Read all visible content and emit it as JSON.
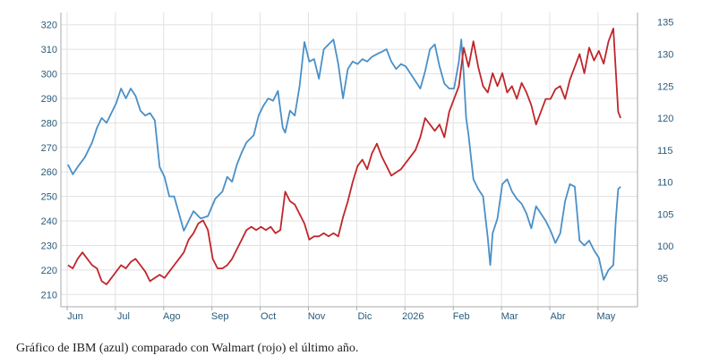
{
  "caption": "Gráfico de IBM (azul) comparado con Walmart (rojo) el último año.",
  "chart_data": {
    "type": "line",
    "title": "",
    "grid": true,
    "x_labels": [
      "Jun",
      "Jul",
      "Ago",
      "Sep",
      "Oct",
      "Nov",
      "Dic",
      "2026",
      "Feb",
      "Mar",
      "Abr",
      "May"
    ],
    "x_range": [
      0,
      11.6
    ],
    "y_left": {
      "ticks": [
        210,
        220,
        230,
        240,
        250,
        260,
        270,
        280,
        290,
        300,
        310,
        320
      ],
      "range": [
        205,
        325
      ]
    },
    "y_right": {
      "ticks": [
        95,
        100,
        105,
        110,
        115,
        120,
        125,
        130,
        135
      ],
      "range": [
        90.5,
        136.5
      ]
    },
    "colors": {
      "blue": "#4a90c8",
      "red": "#c0262a",
      "grid": "#e1e1e1",
      "axis": "#aaaaaa"
    },
    "series": [
      {
        "color": "blue",
        "axis": "left",
        "points": [
          [
            -0.15,
            263
          ],
          [
            -0.05,
            259
          ],
          [
            0.05,
            262
          ],
          [
            0.2,
            266
          ],
          [
            0.35,
            272
          ],
          [
            0.45,
            278
          ],
          [
            0.55,
            282
          ],
          [
            0.65,
            280
          ],
          [
            0.75,
            284
          ],
          [
            0.85,
            288
          ],
          [
            0.95,
            294
          ],
          [
            1.05,
            290
          ],
          [
            1.15,
            294
          ],
          [
            1.25,
            291
          ],
          [
            1.35,
            285
          ],
          [
            1.45,
            283
          ],
          [
            1.55,
            284
          ],
          [
            1.65,
            281
          ],
          [
            1.75,
            262
          ],
          [
            1.85,
            258
          ],
          [
            1.95,
            250
          ],
          [
            2.05,
            250
          ],
          [
            2.15,
            243
          ],
          [
            2.25,
            236
          ],
          [
            2.35,
            240
          ],
          [
            2.45,
            244
          ],
          [
            2.6,
            241
          ],
          [
            2.75,
            242
          ],
          [
            2.9,
            249
          ],
          [
            3.05,
            252
          ],
          [
            3.15,
            258
          ],
          [
            3.25,
            256
          ],
          [
            3.35,
            263
          ],
          [
            3.45,
            268
          ],
          [
            3.55,
            272
          ],
          [
            3.7,
            275
          ],
          [
            3.8,
            283
          ],
          [
            3.9,
            287
          ],
          [
            4.0,
            290
          ],
          [
            4.1,
            289
          ],
          [
            4.2,
            293
          ],
          [
            4.3,
            278
          ],
          [
            4.35,
            276
          ],
          [
            4.45,
            285
          ],
          [
            4.55,
            283
          ],
          [
            4.65,
            295
          ],
          [
            4.75,
            313
          ],
          [
            4.85,
            305
          ],
          [
            4.95,
            306
          ],
          [
            5.05,
            298
          ],
          [
            5.15,
            310
          ],
          [
            5.25,
            312
          ],
          [
            5.35,
            314
          ],
          [
            5.45,
            304
          ],
          [
            5.55,
            290
          ],
          [
            5.65,
            302
          ],
          [
            5.75,
            305
          ],
          [
            5.85,
            304
          ],
          [
            5.95,
            306
          ],
          [
            6.05,
            305
          ],
          [
            6.15,
            307
          ],
          [
            6.25,
            308
          ],
          [
            6.35,
            309
          ],
          [
            6.45,
            310
          ],
          [
            6.55,
            305
          ],
          [
            6.65,
            302
          ],
          [
            6.75,
            304
          ],
          [
            6.85,
            303
          ],
          [
            6.95,
            300
          ],
          [
            7.05,
            297
          ],
          [
            7.15,
            294
          ],
          [
            7.25,
            301
          ],
          [
            7.35,
            310
          ],
          [
            7.45,
            312
          ],
          [
            7.55,
            303
          ],
          [
            7.65,
            296
          ],
          [
            7.75,
            294
          ],
          [
            7.85,
            294
          ],
          [
            7.95,
            305
          ],
          [
            8.0,
            314
          ],
          [
            8.05,
            300
          ],
          [
            8.1,
            282
          ],
          [
            8.15,
            275
          ],
          [
            8.25,
            257
          ],
          [
            8.35,
            253
          ],
          [
            8.45,
            250
          ],
          [
            8.55,
            233
          ],
          [
            8.6,
            222
          ],
          [
            8.65,
            235
          ],
          [
            8.75,
            241
          ],
          [
            8.85,
            255
          ],
          [
            8.95,
            257
          ],
          [
            9.05,
            252
          ],
          [
            9.15,
            249
          ],
          [
            9.25,
            247
          ],
          [
            9.35,
            243
          ],
          [
            9.45,
            237
          ],
          [
            9.55,
            246
          ],
          [
            9.65,
            243
          ],
          [
            9.75,
            240
          ],
          [
            9.85,
            236
          ],
          [
            9.95,
            231
          ],
          [
            10.05,
            235
          ],
          [
            10.15,
            248
          ],
          [
            10.25,
            255
          ],
          [
            10.35,
            254
          ],
          [
            10.45,
            232
          ],
          [
            10.55,
            230
          ],
          [
            10.65,
            232
          ],
          [
            10.75,
            228
          ],
          [
            10.85,
            225
          ],
          [
            10.95,
            216
          ],
          [
            11.05,
            220
          ],
          [
            11.15,
            222
          ],
          [
            11.2,
            240
          ],
          [
            11.25,
            253
          ],
          [
            11.3,
            254
          ]
        ]
      },
      {
        "color": "red",
        "axis": "right",
        "points": [
          [
            -0.15,
            97.0
          ],
          [
            -0.05,
            96.5
          ],
          [
            0.05,
            98.0
          ],
          [
            0.15,
            99.0
          ],
          [
            0.25,
            98.0
          ],
          [
            0.35,
            97.0
          ],
          [
            0.45,
            96.5
          ],
          [
            0.55,
            94.5
          ],
          [
            0.65,
            94.0
          ],
          [
            0.75,
            95.0
          ],
          [
            0.85,
            96.0
          ],
          [
            0.95,
            97.0
          ],
          [
            1.05,
            96.5
          ],
          [
            1.15,
            97.5
          ],
          [
            1.25,
            98.0
          ],
          [
            1.35,
            97.0
          ],
          [
            1.45,
            96.0
          ],
          [
            1.55,
            94.5
          ],
          [
            1.65,
            95.0
          ],
          [
            1.75,
            95.5
          ],
          [
            1.85,
            95.0
          ],
          [
            1.95,
            96.0
          ],
          [
            2.05,
            97.0
          ],
          [
            2.15,
            98.0
          ],
          [
            2.25,
            99.0
          ],
          [
            2.35,
            101.0
          ],
          [
            2.45,
            102.0
          ],
          [
            2.55,
            103.5
          ],
          [
            2.65,
            104.0
          ],
          [
            2.75,
            102.5
          ],
          [
            2.85,
            98.0
          ],
          [
            2.95,
            96.5
          ],
          [
            3.05,
            96.5
          ],
          [
            3.15,
            97.0
          ],
          [
            3.25,
            98.0
          ],
          [
            3.35,
            99.5
          ],
          [
            3.45,
            101.0
          ],
          [
            3.55,
            102.5
          ],
          [
            3.65,
            103.0
          ],
          [
            3.75,
            102.5
          ],
          [
            3.85,
            103.0
          ],
          [
            3.95,
            102.5
          ],
          [
            4.05,
            103.0
          ],
          [
            4.15,
            102.0
          ],
          [
            4.25,
            102.5
          ],
          [
            4.35,
            108.5
          ],
          [
            4.45,
            107.0
          ],
          [
            4.55,
            106.5
          ],
          [
            4.65,
            105.0
          ],
          [
            4.75,
            103.5
          ],
          [
            4.85,
            101.0
          ],
          [
            4.95,
            101.5
          ],
          [
            5.05,
            101.5
          ],
          [
            5.15,
            102.0
          ],
          [
            5.25,
            101.5
          ],
          [
            5.35,
            102.0
          ],
          [
            5.45,
            101.5
          ],
          [
            5.55,
            104.5
          ],
          [
            5.65,
            107.0
          ],
          [
            5.75,
            110.0
          ],
          [
            5.85,
            112.5
          ],
          [
            5.95,
            113.5
          ],
          [
            6.05,
            112.0
          ],
          [
            6.15,
            114.5
          ],
          [
            6.25,
            116.0
          ],
          [
            6.35,
            114.0
          ],
          [
            6.45,
            112.5
          ],
          [
            6.55,
            111.0
          ],
          [
            6.65,
            111.5
          ],
          [
            6.75,
            112.0
          ],
          [
            6.85,
            113.0
          ],
          [
            6.95,
            114.0
          ],
          [
            7.05,
            115.0
          ],
          [
            7.15,
            117.0
          ],
          [
            7.25,
            120.0
          ],
          [
            7.35,
            119.0
          ],
          [
            7.45,
            118.0
          ],
          [
            7.55,
            119.0
          ],
          [
            7.65,
            117.0
          ],
          [
            7.75,
            121.0
          ],
          [
            7.85,
            123.0
          ],
          [
            7.95,
            125.0
          ],
          [
            8.05,
            131.0
          ],
          [
            8.15,
            128.0
          ],
          [
            8.25,
            132.0
          ],
          [
            8.35,
            128.0
          ],
          [
            8.45,
            125.0
          ],
          [
            8.55,
            124.0
          ],
          [
            8.65,
            127.0
          ],
          [
            8.75,
            125.0
          ],
          [
            8.85,
            127.0
          ],
          [
            8.95,
            124.0
          ],
          [
            9.05,
            125.0
          ],
          [
            9.15,
            123.0
          ],
          [
            9.25,
            125.5
          ],
          [
            9.35,
            124.0
          ],
          [
            9.45,
            122.0
          ],
          [
            9.55,
            119.0
          ],
          [
            9.65,
            121.0
          ],
          [
            9.75,
            123.0
          ],
          [
            9.85,
            123.0
          ],
          [
            9.95,
            124.5
          ],
          [
            10.05,
            125.0
          ],
          [
            10.15,
            123.0
          ],
          [
            10.25,
            126.0
          ],
          [
            10.35,
            128.0
          ],
          [
            10.45,
            130.0
          ],
          [
            10.55,
            127.0
          ],
          [
            10.65,
            131.0
          ],
          [
            10.75,
            129.0
          ],
          [
            10.85,
            130.5
          ],
          [
            10.95,
            128.5
          ],
          [
            11.05,
            132.0
          ],
          [
            11.15,
            134.0
          ],
          [
            11.25,
            121.0
          ],
          [
            11.3,
            120.0
          ]
        ]
      }
    ]
  }
}
